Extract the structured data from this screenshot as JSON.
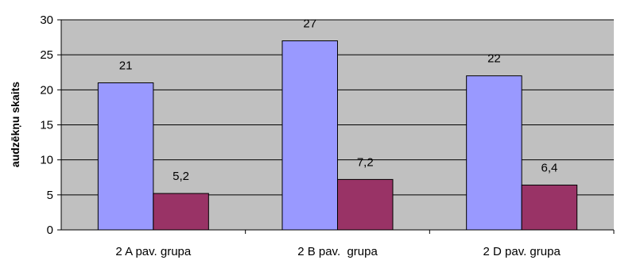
{
  "chart_data": {
    "type": "bar",
    "categories": [
      "2 A pav. grupa",
      "2 B pav.  grupa",
      "2 D pav. grupa"
    ],
    "series": [
      {
        "values": [
          21,
          27,
          22
        ],
        "data_labels": [
          "21",
          "27",
          "22"
        ],
        "color": "#9999FF"
      },
      {
        "values": [
          5.2,
          7.2,
          6.4
        ],
        "data_labels": [
          "5,2",
          "7,2",
          "6,4"
        ],
        "color": "#993366"
      }
    ],
    "title": "",
    "xlabel": "",
    "ylabel": "audzēkņu skaits",
    "ylim": [
      0,
      30
    ],
    "yticks": [
      "0",
      "5",
      "10",
      "15",
      "20",
      "25",
      "30"
    ],
    "grid": true,
    "plot_background": "#C0C0C0",
    "legend": "none"
  }
}
